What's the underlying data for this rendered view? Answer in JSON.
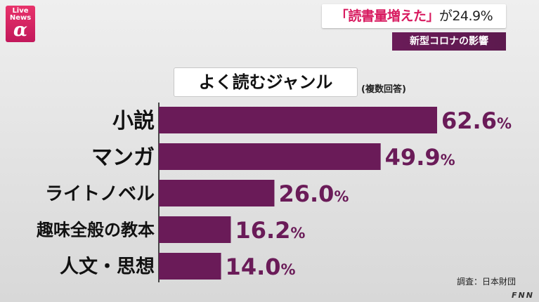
{
  "header": {
    "logo": {
      "line1": "Live",
      "line2": "News",
      "symbol": "α"
    },
    "headline": {
      "quote": "「読書量増えた」",
      "rest": "が24.9%"
    },
    "subhead": "新型コロナの影響"
  },
  "chart_data": {
    "type": "bar",
    "orientation": "horizontal",
    "title": "よく読むジャンル",
    "note": "(複数回答)",
    "categories": [
      "小説",
      "マンガ",
      "ライトノベル",
      "趣味全般の教本",
      "人文・思想"
    ],
    "values": [
      62.6,
      49.9,
      26.0,
      16.2,
      14.0
    ],
    "value_labels": [
      "62.6",
      "49.9",
      "26.0",
      "16.2",
      "14.0"
    ],
    "unit": "%",
    "xlim": [
      0,
      62.6
    ],
    "grid": false,
    "bar_color": "#6a1b58"
  },
  "footer": {
    "source": "調査：日本財団",
    "brand": "FNN"
  }
}
